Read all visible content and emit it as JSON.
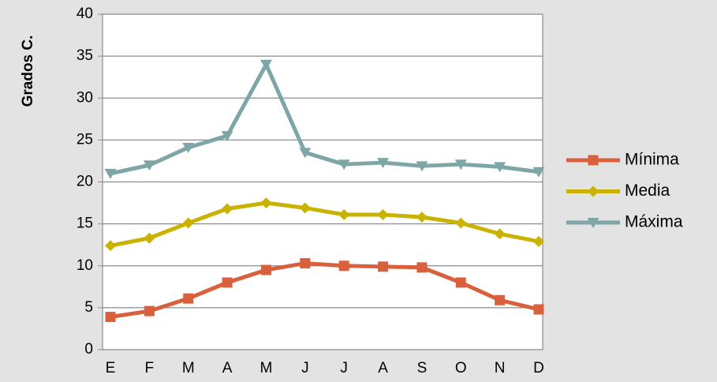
{
  "chart_data": {
    "type": "line",
    "ylabel": "Grados C.",
    "categories": [
      "E",
      "F",
      "M",
      "A",
      "M",
      "J",
      "J",
      "A",
      "S",
      "O",
      "N",
      "D"
    ],
    "series": [
      {
        "name": "Mínima",
        "color": "#d8603c",
        "marker": "square",
        "values": [
          3.9,
          4.6,
          6.1,
          8.0,
          9.5,
          10.3,
          10.0,
          9.9,
          9.8,
          8.0,
          5.9,
          4.8
        ]
      },
      {
        "name": "Media",
        "color": "#c9b200",
        "marker": "diamond",
        "values": [
          12.4,
          13.3,
          15.1,
          16.8,
          17.5,
          16.9,
          16.1,
          16.1,
          15.8,
          15.1,
          13.8,
          12.9
        ]
      },
      {
        "name": "Máxima",
        "color": "#7fa6a6",
        "marker": "triangle-down",
        "values": [
          21.0,
          22.0,
          24.1,
          25.5,
          34.0,
          23.5,
          22.1,
          22.3,
          21.9,
          22.1,
          21.8,
          21.2
        ]
      }
    ],
    "ylim": [
      0,
      40
    ],
    "yticks": [
      0,
      5,
      10,
      15,
      20,
      25,
      30,
      35,
      40
    ],
    "grid": true,
    "legend": "right"
  }
}
